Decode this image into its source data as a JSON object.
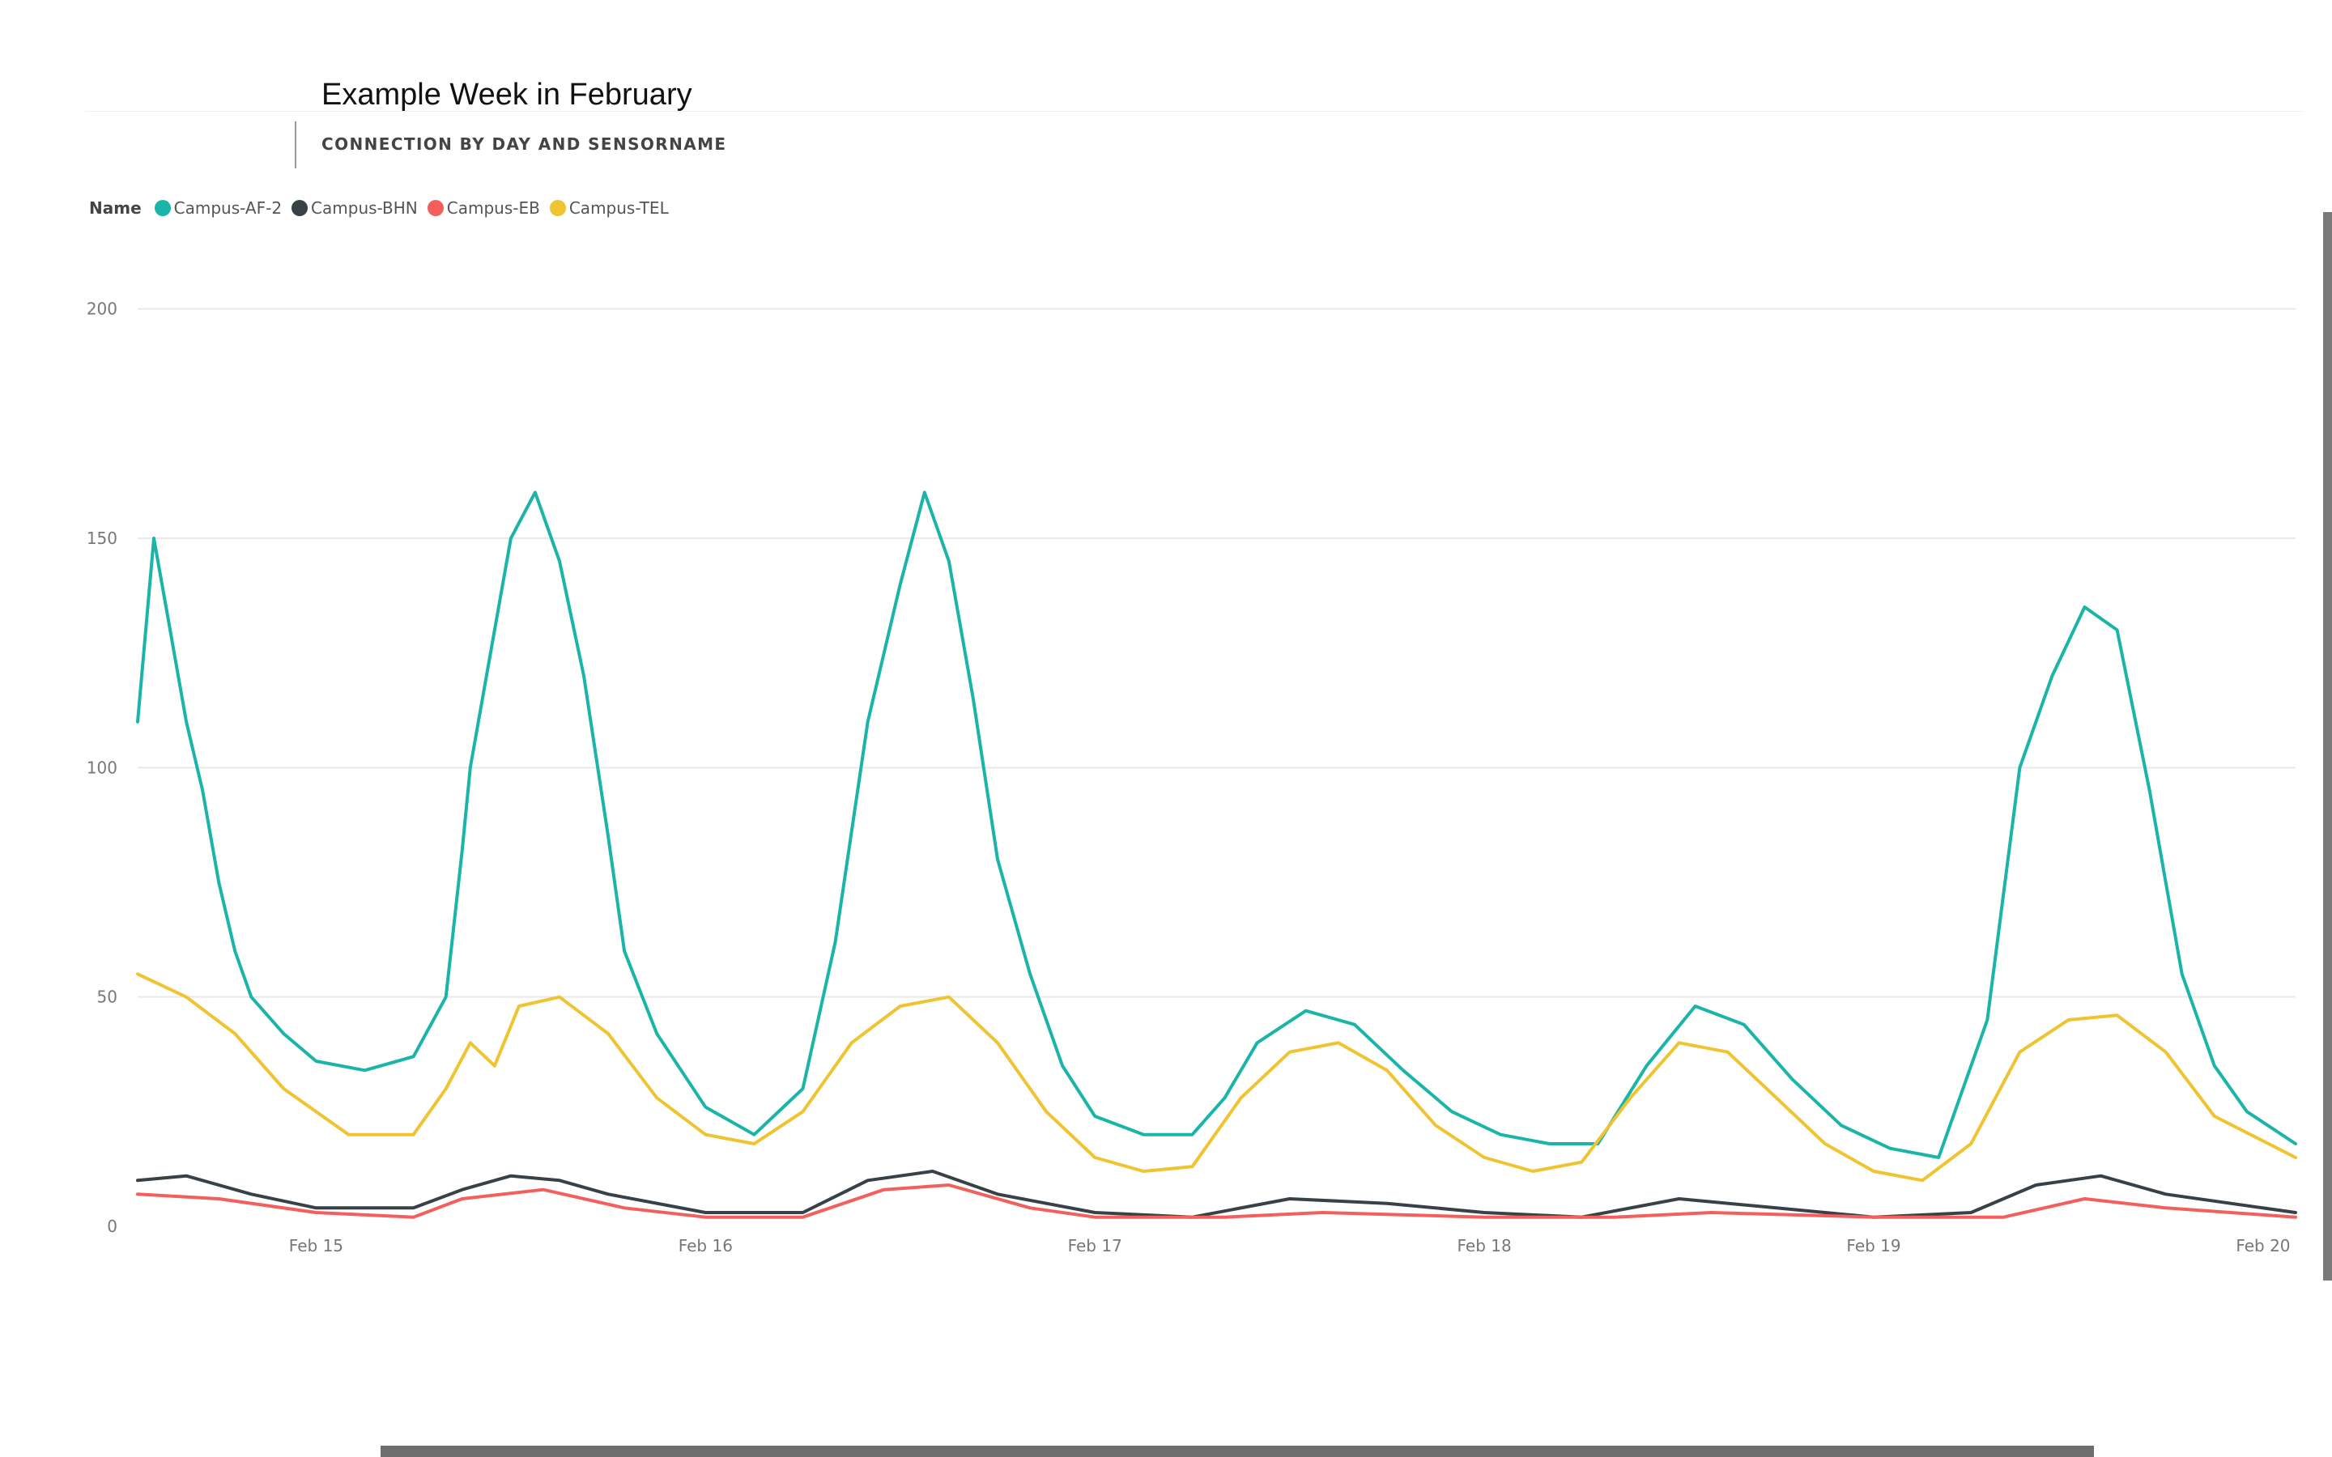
{
  "title": "Example Week in February",
  "subtitle": "CONNECTION BY DAY AND SENSORNAME",
  "legend": {
    "title": "Name",
    "items": [
      {
        "label": "Campus-AF-2",
        "color": "#1ab5a8"
      },
      {
        "label": "Campus-BHN",
        "color": "#374146"
      },
      {
        "label": "Campus-EB",
        "color": "#f25f5c"
      },
      {
        "label": "Campus-TEL",
        "color": "#f0c330"
      }
    ]
  },
  "chart_data": {
    "type": "line",
    "title": "Example Week in February",
    "subtitle": "CONNECTION BY DAY AND SENSORNAME",
    "xlabel": "",
    "ylabel": "",
    "x_range": [
      "2023-02-14T13:00",
      "2023-02-20T02:00"
    ],
    "ylim": [
      0,
      210
    ],
    "y_ticks": [
      0,
      50,
      100,
      150,
      200
    ],
    "x_ticks": [
      {
        "label": "Feb 15",
        "at": "2023-02-15T00:00"
      },
      {
        "label": "Feb 16",
        "at": "2023-02-16T00:00"
      },
      {
        "label": "Feb 17",
        "at": "2023-02-17T00:00"
      },
      {
        "label": "Feb 18",
        "at": "2023-02-18T00:00"
      },
      {
        "label": "Feb 19",
        "at": "2023-02-19T00:00"
      },
      {
        "label": "Feb 20",
        "at": "2023-02-20T00:00"
      }
    ],
    "grid": "horizontal",
    "legend_position": "top-left",
    "series": [
      {
        "name": "Campus-AF-2",
        "color": "#1ab5a8",
        "points": [
          [
            "2023-02-14T13:00",
            110
          ],
          [
            "2023-02-14T14:00",
            150
          ],
          [
            "2023-02-14T15:00",
            130
          ],
          [
            "2023-02-14T16:00",
            110
          ],
          [
            "2023-02-14T17:00",
            95
          ],
          [
            "2023-02-14T18:00",
            75
          ],
          [
            "2023-02-14T19:00",
            60
          ],
          [
            "2023-02-14T20:00",
            50
          ],
          [
            "2023-02-14T22:00",
            42
          ],
          [
            "2023-02-15T00:00",
            36
          ],
          [
            "2023-02-15T03:00",
            34
          ],
          [
            "2023-02-15T06:00",
            37
          ],
          [
            "2023-02-15T08:00",
            50
          ],
          [
            "2023-02-15T09:00",
            82
          ],
          [
            "2023-02-15T09:30",
            100
          ],
          [
            "2023-02-15T10:30",
            120
          ],
          [
            "2023-02-15T12:00",
            150
          ],
          [
            "2023-02-15T13:30",
            160
          ],
          [
            "2023-02-15T15:00",
            145
          ],
          [
            "2023-02-15T16:30",
            120
          ],
          [
            "2023-02-15T18:00",
            85
          ],
          [
            "2023-02-15T19:00",
            60
          ],
          [
            "2023-02-15T21:00",
            42
          ],
          [
            "2023-02-16T00:00",
            26
          ],
          [
            "2023-02-16T03:00",
            20
          ],
          [
            "2023-02-16T06:00",
            30
          ],
          [
            "2023-02-16T08:00",
            62
          ],
          [
            "2023-02-16T10:00",
            110
          ],
          [
            "2023-02-16T12:00",
            140
          ],
          [
            "2023-02-16T13:30",
            160
          ],
          [
            "2023-02-16T15:00",
            145
          ],
          [
            "2023-02-16T16:30",
            115
          ],
          [
            "2023-02-16T18:00",
            80
          ],
          [
            "2023-02-16T20:00",
            55
          ],
          [
            "2023-02-16T22:00",
            35
          ],
          [
            "2023-02-17T00:00",
            24
          ],
          [
            "2023-02-17T03:00",
            20
          ],
          [
            "2023-02-17T06:00",
            20
          ],
          [
            "2023-02-17T08:00",
            28
          ],
          [
            "2023-02-17T10:00",
            40
          ],
          [
            "2023-02-17T13:00",
            47
          ],
          [
            "2023-02-17T16:00",
            44
          ],
          [
            "2023-02-17T19:00",
            34
          ],
          [
            "2023-02-17T22:00",
            25
          ],
          [
            "2023-02-18T01:00",
            20
          ],
          [
            "2023-02-18T04:00",
            18
          ],
          [
            "2023-02-18T07:00",
            18
          ],
          [
            "2023-02-18T10:00",
            35
          ],
          [
            "2023-02-18T13:00",
            48
          ],
          [
            "2023-02-18T16:00",
            44
          ],
          [
            "2023-02-18T19:00",
            32
          ],
          [
            "2023-02-18T22:00",
            22
          ],
          [
            "2023-02-19T01:00",
            17
          ],
          [
            "2023-02-19T04:00",
            15
          ],
          [
            "2023-02-19T07:00",
            45
          ],
          [
            "2023-02-19T09:00",
            100
          ],
          [
            "2023-02-19T11:00",
            120
          ],
          [
            "2023-02-19T13:00",
            135
          ],
          [
            "2023-02-19T15:00",
            130
          ],
          [
            "2023-02-19T17:00",
            95
          ],
          [
            "2023-02-19T19:00",
            55
          ],
          [
            "2023-02-19T21:00",
            35
          ],
          [
            "2023-02-19T23:00",
            25
          ],
          [
            "2023-02-20T02:00",
            18
          ]
        ]
      },
      {
        "name": "Campus-BHN",
        "color": "#374146",
        "points": [
          [
            "2023-02-14T13:00",
            10
          ],
          [
            "2023-02-14T16:00",
            11
          ],
          [
            "2023-02-14T20:00",
            7
          ],
          [
            "2023-02-15T00:00",
            4
          ],
          [
            "2023-02-15T06:00",
            4
          ],
          [
            "2023-02-15T09:00",
            8
          ],
          [
            "2023-02-15T12:00",
            11
          ],
          [
            "2023-02-15T15:00",
            10
          ],
          [
            "2023-02-15T18:00",
            7
          ],
          [
            "2023-02-16T00:00",
            3
          ],
          [
            "2023-02-16T06:00",
            3
          ],
          [
            "2023-02-16T10:00",
            10
          ],
          [
            "2023-02-16T14:00",
            12
          ],
          [
            "2023-02-16T18:00",
            7
          ],
          [
            "2023-02-17T00:00",
            3
          ],
          [
            "2023-02-17T06:00",
            2
          ],
          [
            "2023-02-17T12:00",
            6
          ],
          [
            "2023-02-17T18:00",
            5
          ],
          [
            "2023-02-18T00:00",
            3
          ],
          [
            "2023-02-18T06:00",
            2
          ],
          [
            "2023-02-18T12:00",
            6
          ],
          [
            "2023-02-18T18:00",
            4
          ],
          [
            "2023-02-19T00:00",
            2
          ],
          [
            "2023-02-19T06:00",
            3
          ],
          [
            "2023-02-19T10:00",
            9
          ],
          [
            "2023-02-19T14:00",
            11
          ],
          [
            "2023-02-19T18:00",
            7
          ],
          [
            "2023-02-20T02:00",
            3
          ]
        ]
      },
      {
        "name": "Campus-EB",
        "color": "#f25f5c",
        "points": [
          [
            "2023-02-14T13:00",
            7
          ],
          [
            "2023-02-14T18:00",
            6
          ],
          [
            "2023-02-15T00:00",
            3
          ],
          [
            "2023-02-15T06:00",
            2
          ],
          [
            "2023-02-15T09:00",
            6
          ],
          [
            "2023-02-15T14:00",
            8
          ],
          [
            "2023-02-15T19:00",
            4
          ],
          [
            "2023-02-16T00:00",
            2
          ],
          [
            "2023-02-16T06:00",
            2
          ],
          [
            "2023-02-16T11:00",
            8
          ],
          [
            "2023-02-16T15:00",
            9
          ],
          [
            "2023-02-16T20:00",
            4
          ],
          [
            "2023-02-17T00:00",
            2
          ],
          [
            "2023-02-17T08:00",
            2
          ],
          [
            "2023-02-17T14:00",
            3
          ],
          [
            "2023-02-18T00:00",
            2
          ],
          [
            "2023-02-18T08:00",
            2
          ],
          [
            "2023-02-18T14:00",
            3
          ],
          [
            "2023-02-19T00:00",
            2
          ],
          [
            "2023-02-19T08:00",
            2
          ],
          [
            "2023-02-19T13:00",
            6
          ],
          [
            "2023-02-19T18:00",
            4
          ],
          [
            "2023-02-20T02:00",
            2
          ]
        ]
      },
      {
        "name": "Campus-TEL",
        "color": "#f0c330",
        "points": [
          [
            "2023-02-14T13:00",
            55
          ],
          [
            "2023-02-14T16:00",
            50
          ],
          [
            "2023-02-14T19:00",
            42
          ],
          [
            "2023-02-14T22:00",
            30
          ],
          [
            "2023-02-15T02:00",
            20
          ],
          [
            "2023-02-15T06:00",
            20
          ],
          [
            "2023-02-15T08:00",
            30
          ],
          [
            "2023-02-15T09:30",
            40
          ],
          [
            "2023-02-15T11:00",
            35
          ],
          [
            "2023-02-15T12:30",
            48
          ],
          [
            "2023-02-15T15:00",
            50
          ],
          [
            "2023-02-15T18:00",
            42
          ],
          [
            "2023-02-15T21:00",
            28
          ],
          [
            "2023-02-16T00:00",
            20
          ],
          [
            "2023-02-16T03:00",
            18
          ],
          [
            "2023-02-16T06:00",
            25
          ],
          [
            "2023-02-16T09:00",
            40
          ],
          [
            "2023-02-16T12:00",
            48
          ],
          [
            "2023-02-16T15:00",
            50
          ],
          [
            "2023-02-16T18:00",
            40
          ],
          [
            "2023-02-16T21:00",
            25
          ],
          [
            "2023-02-17T00:00",
            15
          ],
          [
            "2023-02-17T03:00",
            12
          ],
          [
            "2023-02-17T06:00",
            13
          ],
          [
            "2023-02-17T09:00",
            28
          ],
          [
            "2023-02-17T12:00",
            38
          ],
          [
            "2023-02-17T15:00",
            40
          ],
          [
            "2023-02-17T18:00",
            34
          ],
          [
            "2023-02-17T21:00",
            22
          ],
          [
            "2023-02-18T00:00",
            15
          ],
          [
            "2023-02-18T03:00",
            12
          ],
          [
            "2023-02-18T06:00",
            14
          ],
          [
            "2023-02-18T09:00",
            28
          ],
          [
            "2023-02-18T12:00",
            40
          ],
          [
            "2023-02-18T15:00",
            38
          ],
          [
            "2023-02-18T18:00",
            28
          ],
          [
            "2023-02-18T21:00",
            18
          ],
          [
            "2023-02-19T00:00",
            12
          ],
          [
            "2023-02-19T03:00",
            10
          ],
          [
            "2023-02-19T06:00",
            18
          ],
          [
            "2023-02-19T09:00",
            38
          ],
          [
            "2023-02-19T12:00",
            45
          ],
          [
            "2023-02-19T15:00",
            46
          ],
          [
            "2023-02-19T18:00",
            38
          ],
          [
            "2023-02-19T21:00",
            24
          ],
          [
            "2023-02-20T02:00",
            15
          ]
        ]
      }
    ]
  }
}
